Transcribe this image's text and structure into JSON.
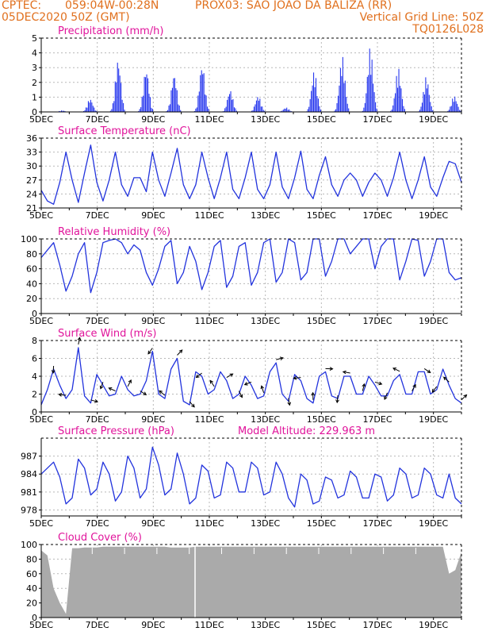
{
  "header": {
    "line1_left": "CPTEC:",
    "line1_coord": "059:04W-00:28N",
    "line1_station": "PROX03: SAO JOAO DA BALIZA (RR)",
    "line2_left": "05DEC2020 50Z (GMT)",
    "line2_right": "Vertical Grid Line: 50Z",
    "line3_right": "TQ0126L028"
  },
  "colors": {
    "header": "#e0701e",
    "title": "#e0149b",
    "line": "#2233dd",
    "bar": "#2233ee",
    "cloud": "#aaaaaa",
    "grid": "#b8b8b8"
  },
  "chart_data": [
    {
      "id": "precip",
      "type": "bar",
      "title": "Precipitation (mm/h)",
      "x_ticks": [
        "5DEC",
        "7DEC",
        "9DEC",
        "11DEC",
        "13DEC",
        "15DEC",
        "17DEC",
        "19DEC"
      ],
      "y_ticks": [
        "0",
        "1",
        "2",
        "3",
        "4",
        "5"
      ],
      "ylim": [
        0,
        5
      ],
      "grid": true,
      "interval_hours": 1,
      "daily_max": [
        0.1,
        0.9,
        3.6,
        3.0,
        2.6,
        3.3,
        1.5,
        1.1,
        0.3,
        2.8,
        3.8,
        4.4,
        3.0,
        2.4,
        1.1
      ]
    },
    {
      "id": "temp",
      "type": "line",
      "title": "Surface Temperature (nC)",
      "x_ticks": [
        "5DEC",
        "7DEC",
        "9DEC",
        "11DEC",
        "13DEC",
        "15DEC",
        "17DEC",
        "19DEC"
      ],
      "y_ticks": [
        "21",
        "24",
        "27",
        "30",
        "33",
        "36"
      ],
      "ylim": [
        21,
        36
      ],
      "grid": true,
      "interval_hours": 6,
      "values": [
        24.8,
        22.5,
        21.8,
        26.5,
        33.0,
        27.0,
        22.2,
        28.5,
        34.5,
        26.5,
        22.5,
        27.0,
        33.0,
        26.0,
        23.5,
        27.5,
        27.5,
        24.5,
        33.0,
        27.0,
        23.5,
        28.5,
        33.8,
        26.0,
        23.0,
        26.0,
        33.0,
        27.5,
        23.0,
        27.5,
        33.0,
        25.0,
        23.0,
        27.5,
        33.0,
        25.0,
        23.0,
        26.0,
        33.0,
        25.5,
        23.0,
        27.5,
        33.2,
        25.0,
        23.0,
        28.0,
        32.0,
        26.0,
        23.5,
        27.0,
        28.5,
        27.0,
        23.5,
        26.5,
        28.5,
        27.0,
        23.5,
        27.5,
        33.0,
        27.0,
        23.0,
        27.0,
        32.0,
        25.5,
        23.5,
        27.5,
        31.0,
        30.5,
        26.5
      ]
    },
    {
      "id": "rh",
      "type": "line",
      "title": "Relative Humidity (%)",
      "x_ticks": [
        "5DEC",
        "7DEC",
        "9DEC",
        "11DEC",
        "13DEC",
        "15DEC",
        "17DEC",
        "19DEC"
      ],
      "y_ticks": [
        "0",
        "20",
        "40",
        "60",
        "80",
        "100"
      ],
      "ylim": [
        0,
        100
      ],
      "grid": true,
      "interval_hours": 6,
      "values": [
        75,
        85,
        95,
        65,
        30,
        50,
        80,
        95,
        28,
        55,
        95,
        98,
        100,
        95,
        80,
        92,
        85,
        55,
        38,
        60,
        90,
        98,
        40,
        55,
        90,
        70,
        32,
        55,
        90,
        98,
        35,
        50,
        90,
        95,
        38,
        55,
        95,
        100,
        42,
        55,
        100,
        95,
        45,
        55,
        100,
        100,
        50,
        70,
        100,
        100,
        80,
        90,
        100,
        100,
        60,
        90,
        100,
        100,
        45,
        70,
        100,
        98,
        50,
        70,
        100,
        100,
        55,
        45,
        48
      ]
    },
    {
      "id": "wind",
      "type": "line",
      "title": "Surface Wind (m/s)",
      "x_ticks": [
        "5DEC",
        "7DEC",
        "9DEC",
        "11DEC",
        "13DEC",
        "15DEC",
        "17DEC",
        "19DEC"
      ],
      "y_ticks": [
        "0",
        "2",
        "4",
        "6",
        "8"
      ],
      "ylim": [
        0,
        8
      ],
      "grid": true,
      "interval_hours": 6,
      "values": [
        0.8,
        2.5,
        4.8,
        3.0,
        1.5,
        2.5,
        7.2,
        1.8,
        1.0,
        4.2,
        3.0,
        1.8,
        2.0,
        4.0,
        2.5,
        1.8,
        2.0,
        3.5,
        6.8,
        2.0,
        1.5,
        4.8,
        6.0,
        1.2,
        0.8,
        4.5,
        4.0,
        2.0,
        2.5,
        4.5,
        3.5,
        1.5,
        2.0,
        4.0,
        3.0,
        1.5,
        1.8,
        4.5,
        5.5,
        2.0,
        1.2,
        4.2,
        3.5,
        1.5,
        1.0,
        4.0,
        4.5,
        1.8,
        1.5,
        4.0,
        4.0,
        2.0,
        2.0,
        4.0,
        3.0,
        1.8,
        1.8,
        3.5,
        4.2,
        2.0,
        2.0,
        4.5,
        4.5,
        2.0,
        2.5,
        4.8,
        3.0,
        1.5,
        1.0
      ]
    },
    {
      "id": "pres",
      "type": "line",
      "title": "Surface Pressure (hPa)",
      "subtitle": "Model Altitude: 229.963 m",
      "x_ticks": [
        "5DEC",
        "7DEC",
        "9DEC",
        "11DEC",
        "13DEC",
        "15DEC",
        "17DEC",
        "19DEC"
      ],
      "y_ticks": [
        "978",
        "981",
        "984",
        "987"
      ],
      "ylim": [
        977,
        990
      ],
      "grid": true,
      "interval_hours": 6,
      "values": [
        984,
        985,
        986,
        983.5,
        979,
        980,
        986.5,
        985,
        980.5,
        981.5,
        986,
        984,
        979.5,
        981,
        987,
        985,
        980,
        981.5,
        988.5,
        985.5,
        980.5,
        981.5,
        987.5,
        984,
        979,
        980,
        985.5,
        984.5,
        980,
        980.5,
        986,
        985,
        981,
        981,
        986,
        985,
        980.5,
        981,
        986,
        984,
        980,
        978.5,
        984,
        983,
        979,
        979.5,
        983.5,
        983,
        980,
        980.5,
        984.5,
        983.5,
        980,
        980,
        984,
        983.5,
        979.5,
        980.5,
        985,
        984,
        980,
        980.5,
        985,
        984,
        980.5,
        980,
        984,
        980,
        979
      ]
    },
    {
      "id": "cloud",
      "type": "area",
      "title": "Cloud Cover (%)",
      "x_ticks": [
        "5DEC",
        "7DEC",
        "9DEC",
        "11DEC",
        "13DEC",
        "15DEC",
        "17DEC",
        "19DEC"
      ],
      "y_ticks": [
        "0",
        "20",
        "40",
        "60",
        "80",
        "100"
      ],
      "ylim": [
        0,
        100
      ],
      "grid": true,
      "interval_hours": 6,
      "values": [
        92,
        85,
        40,
        20,
        5,
        95,
        95,
        96,
        96,
        96,
        97,
        97,
        97,
        97,
        97,
        97,
        97,
        97,
        97,
        97,
        97,
        96,
        96,
        96,
        96,
        97,
        97,
        97,
        97,
        97,
        97,
        97,
        97,
        97,
        97,
        97,
        97,
        97,
        97,
        97,
        97,
        97,
        97,
        97,
        97,
        97,
        97,
        97,
        97,
        97,
        97,
        97,
        97,
        97,
        97,
        97,
        97,
        97,
        97,
        97,
        97,
        97,
        97,
        97,
        97,
        97,
        60,
        65,
        90
      ]
    }
  ]
}
